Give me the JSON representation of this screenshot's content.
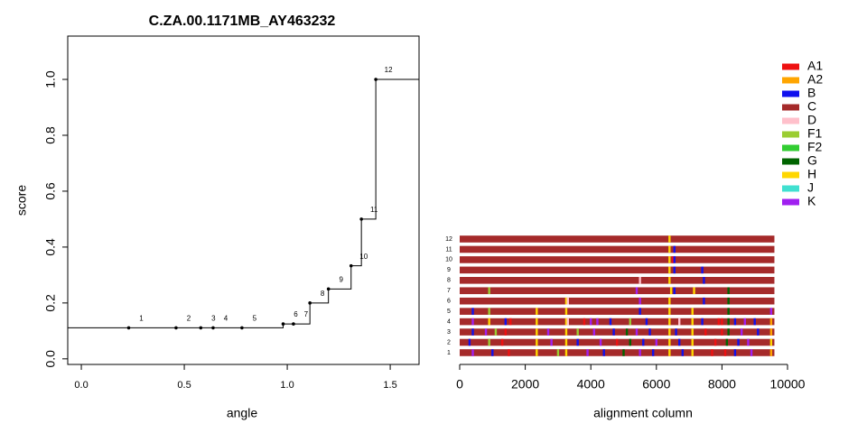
{
  "chart_data": [
    {
      "type": "step",
      "title": "C.ZA.00.1171MB_AY463232",
      "x_label": "angle",
      "y_label": "score",
      "x": [
        0.23,
        0.46,
        0.58,
        0.64,
        0.78,
        0.98,
        1.03,
        1.11,
        1.2,
        1.31,
        1.36,
        1.43
      ],
      "values": [
        0.111,
        0.111,
        0.111,
        0.111,
        0.111,
        0.125,
        0.125,
        0.2,
        0.25,
        0.333,
        0.5,
        1.0
      ],
      "point_labels": [
        "1",
        "2",
        "3",
        "4",
        "5",
        "6",
        "7",
        "8",
        "9",
        "10",
        "11",
        "12"
      ],
      "color": "#000000",
      "xlim": [
        -0.066,
        1.64
      ],
      "ylim": [
        -0.02,
        1.155
      ],
      "xticks": [
        {
          "value": 0,
          "label": "0.0"
        },
        {
          "value": 0.5,
          "label": "0.5"
        },
        {
          "value": 1,
          "label": "1.0"
        },
        {
          "value": 1.5,
          "label": "1.5"
        }
      ],
      "yticks": [
        {
          "value": 0,
          "label": "0.0"
        },
        {
          "value": 0.2,
          "label": "0.2"
        },
        {
          "value": 0.4,
          "label": "0.4"
        },
        {
          "value": 0.6,
          "label": "0.6"
        },
        {
          "value": 0.8,
          "label": "0.8"
        },
        {
          "value": 1,
          "label": "1.0"
        }
      ]
    },
    {
      "type": "alignment",
      "x_label": "alignment column",
      "base": "C",
      "categories": [
        "1",
        "2",
        "3",
        "4",
        "5",
        "6",
        "7",
        "8",
        "9",
        "10",
        "11",
        "12"
      ],
      "values": [
        9600,
        9600,
        9600,
        9600,
        9600,
        9600,
        9600,
        9600,
        9600,
        9600,
        9600,
        9600
      ],
      "xlim": [
        0,
        10000
      ],
      "xticks": [
        0,
        2000,
        4000,
        6000,
        8000,
        10000
      ],
      "legend": [
        {
          "name": "A1",
          "color": "#ee1111"
        },
        {
          "name": "A2",
          "color": "#ffa500"
        },
        {
          "name": "B",
          "color": "#1010ee"
        },
        {
          "name": "C",
          "color": "#a52a2a"
        },
        {
          "name": "D",
          "color": "#ffc0cb"
        },
        {
          "name": "F1",
          "color": "#9acd32"
        },
        {
          "name": "F2",
          "color": "#32cd32"
        },
        {
          "name": "G",
          "color": "#006400"
        },
        {
          "name": "H",
          "color": "#ffd700"
        },
        {
          "name": "J",
          "color": "#40e0d0"
        },
        {
          "name": "K",
          "color": "#a020f0"
        }
      ],
      "stripes": [
        [
          [
            400,
            "K"
          ],
          [
            1000,
            "B"
          ],
          [
            1500,
            "A1"
          ],
          [
            2350,
            "H"
          ],
          [
            3000,
            "F1"
          ],
          [
            3250,
            "H"
          ],
          [
            3900,
            "K"
          ],
          [
            4400,
            "B"
          ],
          [
            5000,
            "G"
          ],
          [
            5500,
            "K"
          ],
          [
            5900,
            "B"
          ],
          [
            6400,
            "H"
          ],
          [
            6800,
            "B"
          ],
          [
            7100,
            "H"
          ],
          [
            7700,
            "A1"
          ],
          [
            8100,
            "A1"
          ],
          [
            8400,
            "B"
          ],
          [
            8900,
            "K"
          ],
          [
            9500,
            "A2"
          ]
        ],
        [
          [
            300,
            "B"
          ],
          [
            900,
            "F1"
          ],
          [
            1300,
            "A1"
          ],
          [
            2350,
            "H"
          ],
          [
            2800,
            "K"
          ],
          [
            3250,
            "H"
          ],
          [
            3600,
            "B"
          ],
          [
            4300,
            "K"
          ],
          [
            4800,
            "A1"
          ],
          [
            5200,
            "G"
          ],
          [
            5600,
            "B"
          ],
          [
            6000,
            "K"
          ],
          [
            6400,
            "H"
          ],
          [
            6700,
            "B"
          ],
          [
            7100,
            "H"
          ],
          [
            7800,
            "A1"
          ],
          [
            8150,
            "G"
          ],
          [
            8500,
            "B"
          ],
          [
            8800,
            "K"
          ],
          [
            9500,
            "H"
          ]
        ],
        [
          [
            400,
            "B"
          ],
          [
            800,
            "K"
          ],
          [
            1100,
            "F1"
          ],
          [
            1400,
            "A1"
          ],
          [
            2350,
            "H"
          ],
          [
            2700,
            "K"
          ],
          [
            3250,
            "H"
          ],
          [
            3600,
            "F1"
          ],
          [
            4100,
            "K"
          ],
          [
            4700,
            "B"
          ],
          [
            5100,
            "G"
          ],
          [
            5400,
            "K"
          ],
          [
            5800,
            "B"
          ],
          [
            6400,
            "H"
          ],
          [
            6600,
            "B"
          ],
          [
            7100,
            "H"
          ],
          [
            7500,
            "A1"
          ],
          [
            8000,
            "A1"
          ],
          [
            8200,
            "G"
          ],
          [
            8600,
            "K"
          ],
          [
            9100,
            "B"
          ],
          [
            9500,
            "A2"
          ]
        ],
        [
          [
            400,
            "K"
          ],
          [
            900,
            "H"
          ],
          [
            1400,
            "B"
          ],
          [
            1550,
            "A1"
          ],
          [
            2350,
            "H"
          ],
          [
            3250,
            "H"
          ],
          [
            3300,
            "D"
          ],
          [
            3800,
            "A1"
          ],
          [
            4000,
            "K"
          ],
          [
            4200,
            "K"
          ],
          [
            4600,
            "B"
          ],
          [
            5200,
            "F1"
          ],
          [
            5700,
            "B"
          ],
          [
            6400,
            "H"
          ],
          [
            6700,
            "D"
          ],
          [
            7100,
            "H"
          ],
          [
            7400,
            "B"
          ],
          [
            7900,
            "A1"
          ],
          [
            8000,
            "A1"
          ],
          [
            8200,
            "G"
          ],
          [
            8400,
            "B"
          ],
          [
            8700,
            "K"
          ],
          [
            9000,
            "B"
          ],
          [
            9500,
            "A2"
          ]
        ],
        [
          [
            400,
            "B"
          ],
          [
            900,
            "F1"
          ],
          [
            2350,
            "H"
          ],
          [
            3250,
            "H"
          ],
          [
            5500,
            "B"
          ],
          [
            6400,
            "H"
          ],
          [
            7100,
            "H"
          ],
          [
            8200,
            "G"
          ],
          [
            9500,
            "K"
          ]
        ],
        [
          [
            3250,
            "H"
          ],
          [
            3300,
            "D"
          ],
          [
            5500,
            "K"
          ],
          [
            6400,
            "H"
          ],
          [
            7450,
            "B"
          ],
          [
            8200,
            "G"
          ]
        ],
        [
          [
            900,
            "F1"
          ],
          [
            5400,
            "K"
          ],
          [
            6450,
            "H"
          ],
          [
            6550,
            "B"
          ],
          [
            7150,
            "H"
          ],
          [
            8200,
            "G"
          ]
        ],
        [
          [
            5500,
            "D"
          ],
          [
            6400,
            "H"
          ],
          [
            7450,
            "B"
          ]
        ],
        [
          [
            6400,
            "H"
          ],
          [
            6550,
            "B"
          ],
          [
            7400,
            "B"
          ]
        ],
        [
          [
            6400,
            "H"
          ],
          [
            6500,
            "A1"
          ],
          [
            6550,
            "B"
          ]
        ],
        [
          [
            6400,
            "H"
          ],
          [
            6550,
            "B"
          ]
        ],
        [
          [
            6400,
            "H"
          ]
        ]
      ]
    }
  ]
}
